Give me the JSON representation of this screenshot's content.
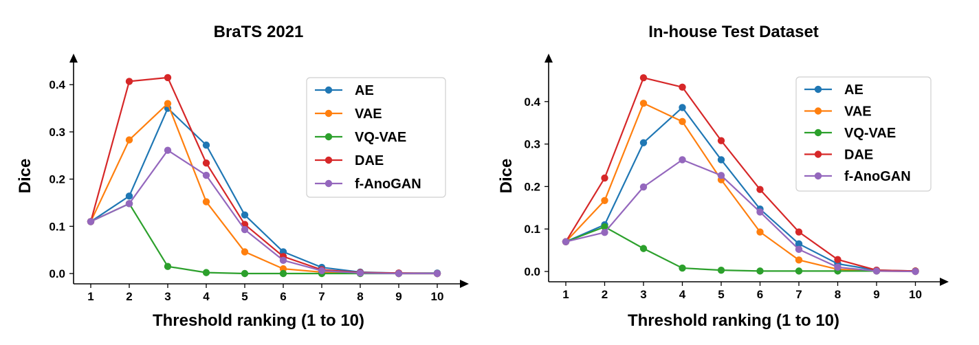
{
  "chart_data": [
    {
      "type": "line",
      "title": "BraTS 2021",
      "xlabel": "Threshold ranking (1 to 10)",
      "ylabel": "Dice",
      "x": [
        1,
        2,
        3,
        4,
        5,
        6,
        7,
        8,
        9,
        10
      ],
      "xticks": [
        "1",
        "2",
        "3",
        "4",
        "5",
        "6",
        "7",
        "8",
        "9",
        "10"
      ],
      "yticks": [
        "0.0",
        "0.1",
        "0.2",
        "0.3",
        "0.4"
      ],
      "ytick_values": [
        0.0,
        0.1,
        0.2,
        0.3,
        0.4
      ],
      "ylim": [
        -0.02,
        0.46
      ],
      "xlim": [
        0.6,
        10.6
      ],
      "legend": "top-right",
      "grid": false,
      "series": [
        {
          "name": "AE",
          "color": "#1f77b4",
          "values": [
            0.11,
            0.164,
            0.35,
            0.272,
            0.124,
            0.046,
            0.013,
            0.003,
            0.001,
            0.001
          ]
        },
        {
          "name": "VAE",
          "color": "#ff7f0e",
          "values": [
            0.11,
            0.283,
            0.36,
            0.152,
            0.046,
            0.01,
            0.003,
            0.001,
            0.0,
            0.0
          ]
        },
        {
          "name": "VQ-VAE",
          "color": "#2ca02c",
          "values": [
            0.11,
            0.148,
            0.015,
            0.002,
            0.0,
            0.0,
            0.0,
            0.0,
            0.0,
            0.0
          ]
        },
        {
          "name": "DAE",
          "color": "#d62728",
          "values": [
            0.11,
            0.407,
            0.415,
            0.234,
            0.104,
            0.036,
            0.008,
            0.002,
            0.001,
            0.0
          ]
        },
        {
          "name": "f-AnoGAN",
          "color": "#9467bd",
          "values": [
            0.11,
            0.148,
            0.261,
            0.208,
            0.093,
            0.028,
            0.006,
            0.001,
            0.0,
            0.0
          ]
        }
      ]
    },
    {
      "type": "line",
      "title": "In-house Test Dataset",
      "xlabel": "Threshold ranking (1 to 10)",
      "ylabel": "Dice",
      "x": [
        1,
        2,
        3,
        4,
        5,
        6,
        7,
        8,
        9,
        10
      ],
      "xticks": [
        "1",
        "2",
        "3",
        "4",
        "5",
        "6",
        "7",
        "8",
        "9",
        "10"
      ],
      "yticks": [
        "0.0",
        "0.1",
        "0.2",
        "0.3",
        "0.4"
      ],
      "ytick_values": [
        0.0,
        0.1,
        0.2,
        0.3,
        0.4
      ],
      "ylim": [
        -0.02,
        0.49
      ],
      "xlim": [
        0.6,
        10.6
      ],
      "legend": "top-right",
      "grid": false,
      "series": [
        {
          "name": "AE",
          "color": "#1f77b4",
          "values": [
            0.07,
            0.11,
            0.303,
            0.386,
            0.263,
            0.147,
            0.065,
            0.018,
            0.003,
            0.001
          ]
        },
        {
          "name": "VAE",
          "color": "#ff7f0e",
          "values": [
            0.07,
            0.167,
            0.396,
            0.353,
            0.216,
            0.093,
            0.027,
            0.005,
            0.001,
            0.0
          ]
        },
        {
          "name": "VQ-VAE",
          "color": "#2ca02c",
          "values": [
            0.07,
            0.105,
            0.054,
            0.008,
            0.003,
            0.001,
            0.001,
            0.001,
            0.001,
            0.001
          ]
        },
        {
          "name": "DAE",
          "color": "#d62728",
          "values": [
            0.07,
            0.22,
            0.456,
            0.434,
            0.308,
            0.193,
            0.093,
            0.028,
            0.003,
            0.001
          ]
        },
        {
          "name": "f-AnoGAN",
          "color": "#9467bd",
          "values": [
            0.07,
            0.092,
            0.199,
            0.263,
            0.226,
            0.14,
            0.052,
            0.01,
            0.001,
            0.0
          ]
        }
      ]
    }
  ]
}
